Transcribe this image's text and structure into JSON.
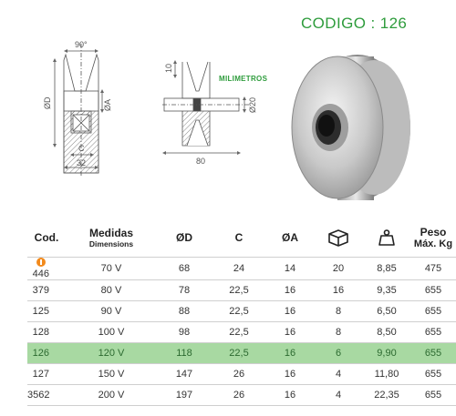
{
  "title": "CODIGO : 126",
  "units_label": "MILIMETROS",
  "drawing_labels": {
    "angle": "90°",
    "diameter_outer": "ØD",
    "diameter_bore": "ØA",
    "width_c": "C",
    "width_total": "32",
    "groove_depth": "10",
    "axle_diameter": "Ø20",
    "axle_length": "80"
  },
  "table": {
    "headers": {
      "cod": "Cod.",
      "medidas": "Medidas",
      "medidas_sub": "Dimensions",
      "d": "ØD",
      "c": "C",
      "a": "ØA",
      "box_icon": "box-icon",
      "weight_icon": "weight-icon",
      "peso": "Peso",
      "peso_sub": "Máx. Kg"
    },
    "rows": [
      {
        "cod": "446",
        "medidas": "70 V",
        "d": "68",
        "c": "24",
        "a": "14",
        "box": "20",
        "weight": "8,85",
        "peso": "475",
        "marker": true
      },
      {
        "cod": "379",
        "medidas": "80 V",
        "d": "78",
        "c": "22,5",
        "a": "16",
        "box": "16",
        "weight": "9,35",
        "peso": "655"
      },
      {
        "cod": "125",
        "medidas": "90 V",
        "d": "88",
        "c": "22,5",
        "a": "16",
        "box": "8",
        "weight": "6,50",
        "peso": "655"
      },
      {
        "cod": "128",
        "medidas": "100 V",
        "d": "98",
        "c": "22,5",
        "a": "16",
        "box": "8",
        "weight": "8,50",
        "peso": "655"
      },
      {
        "cod": "126",
        "medidas": "120 V",
        "d": "118",
        "c": "22,5",
        "a": "16",
        "box": "6",
        "weight": "9,90",
        "peso": "655",
        "highlight": true
      },
      {
        "cod": "127",
        "medidas": "150 V",
        "d": "147",
        "c": "26",
        "a": "16",
        "box": "4",
        "weight": "11,80",
        "peso": "655"
      },
      {
        "cod": "3562",
        "medidas": "200 V",
        "d": "197",
        "c": "26",
        "a": "16",
        "box": "4",
        "weight": "22,35",
        "peso": "655"
      }
    ]
  },
  "colors": {
    "accent_green": "#2e9c3c",
    "highlight_row": "#a8d9a2",
    "marker_orange": "#f28a1c"
  }
}
